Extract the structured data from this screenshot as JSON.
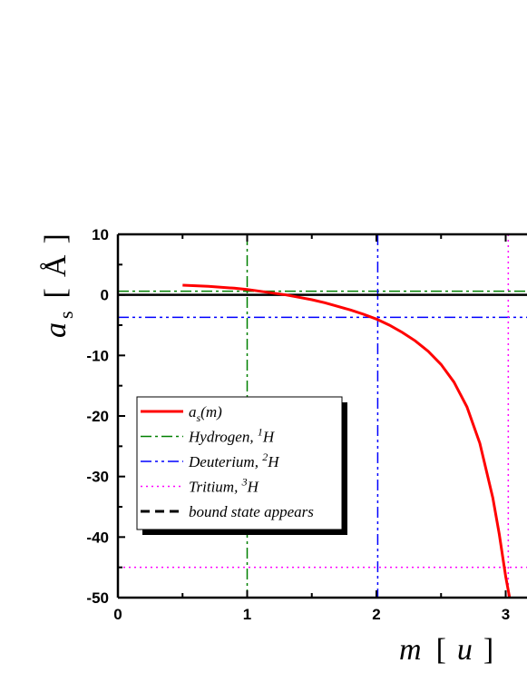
{
  "chart_data": {
    "type": "line",
    "title": "",
    "xlabel": {
      "var": "m",
      "unit": "u"
    },
    "ylabel": {
      "var": "a",
      "sub": "s",
      "unit": "Å"
    },
    "xlim": [
      0,
      3.1
    ],
    "ylim": [
      -50,
      10
    ],
    "xticks": [
      "0",
      "1",
      "2",
      "3"
    ],
    "yticks": [
      "10",
      "0",
      "-10",
      "-20",
      "-30",
      "-40",
      "-50"
    ],
    "series": [
      {
        "name": "a_s(m)",
        "color": "#ff0000",
        "style": "solid",
        "x": [
          0.5,
          0.7,
          0.9,
          1.0,
          1.1,
          1.2,
          1.3,
          1.4,
          1.5,
          1.6,
          1.7,
          1.8,
          1.9,
          2.0,
          2.1,
          2.2,
          2.3,
          2.4,
          2.5,
          2.6,
          2.7,
          2.8,
          2.9,
          2.95,
          3.0,
          3.03
        ],
        "y": [
          1.6,
          1.4,
          1.1,
          0.9,
          0.6,
          0.3,
          0.0,
          -0.4,
          -0.8,
          -1.3,
          -1.9,
          -2.5,
          -3.2,
          -4.0,
          -5.0,
          -6.2,
          -7.6,
          -9.3,
          -11.5,
          -14.4,
          -18.5,
          -24.5,
          -33.5,
          -39.5,
          -46.5,
          -50.0
        ]
      }
    ],
    "reference_lines": [
      {
        "name": "Hydrogen, ¹H",
        "color": "#008000",
        "style": "dashdot",
        "x": 1.0,
        "y": 0.6
      },
      {
        "name": "Deuterium, ²H",
        "color": "#0000ff",
        "style": "dashdotdot",
        "x": 2.01,
        "y": -3.7
      },
      {
        "name": "Tritium, ³H",
        "color": "#ff00ff",
        "style": "dotted",
        "x": 3.02,
        "y": -45.0
      },
      {
        "name": "bound state appears",
        "color": "#000000",
        "style": "dashed",
        "y": 0
      }
    ],
    "legend": {
      "placement": "lower-left",
      "entries": [
        {
          "key": "as",
          "text_main": "a",
          "text_sub": "s",
          "text_tail": "(m)",
          "color": "#ff0000",
          "style": "solid"
        },
        {
          "key": "h",
          "text_main": "Hydrogen, ",
          "text_sup": "1",
          "text_tail": "H",
          "color": "#008000",
          "style": "dashdot"
        },
        {
          "key": "d",
          "text_main": "Deuterium, ",
          "text_sup": "2",
          "text_tail": "H",
          "color": "#0000ff",
          "style": "dashdotdot"
        },
        {
          "key": "t",
          "text_main": "Tritium, ",
          "text_sup": "3",
          "text_tail": "H",
          "color": "#ff00ff",
          "style": "dotted"
        },
        {
          "key": "b",
          "text_main": "bound state appears",
          "text_sup": "",
          "text_tail": "",
          "color": "#000000",
          "style": "dashed"
        }
      ]
    }
  }
}
